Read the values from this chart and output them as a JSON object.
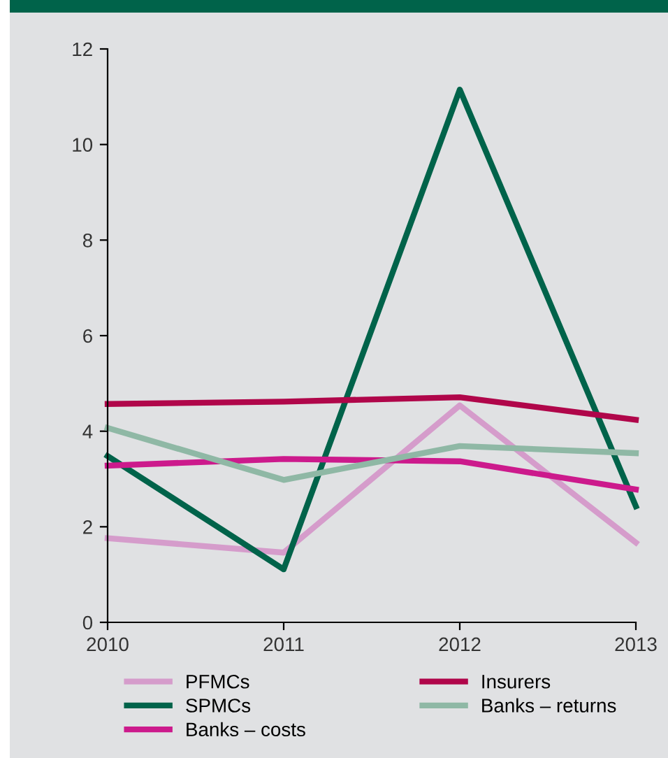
{
  "chart_data": {
    "type": "line",
    "x": [
      2010,
      2011,
      2012,
      2013
    ],
    "xlim": [
      2010,
      2013
    ],
    "xticks": [
      2010,
      2011,
      2012,
      2013
    ],
    "ylim": [
      0,
      12
    ],
    "yticks": [
      0,
      2,
      4,
      6,
      8,
      10,
      12
    ],
    "grid": false,
    "legend": "bottom",
    "marker": "none",
    "line_style": "solid",
    "series": [
      {
        "name": "PFMCs",
        "color": "#d59ccb",
        "values": [
          1.76,
          1.46,
          4.54,
          1.67
        ]
      },
      {
        "name": "SPMCs",
        "color": "#00634a",
        "values": [
          3.48,
          1.11,
          11.15,
          2.43
        ]
      },
      {
        "name": "Banks – costs",
        "color": "#cc1a8c",
        "values": [
          3.28,
          3.42,
          3.37,
          2.78
        ]
      },
      {
        "name": "Insurers",
        "color": "#b0064a",
        "values": [
          4.57,
          4.62,
          4.71,
          4.24
        ]
      },
      {
        "name": "Banks – returns",
        "color": "#8fb8a5",
        "values": [
          4.07,
          2.98,
          3.69,
          3.54
        ]
      }
    ]
  }
}
